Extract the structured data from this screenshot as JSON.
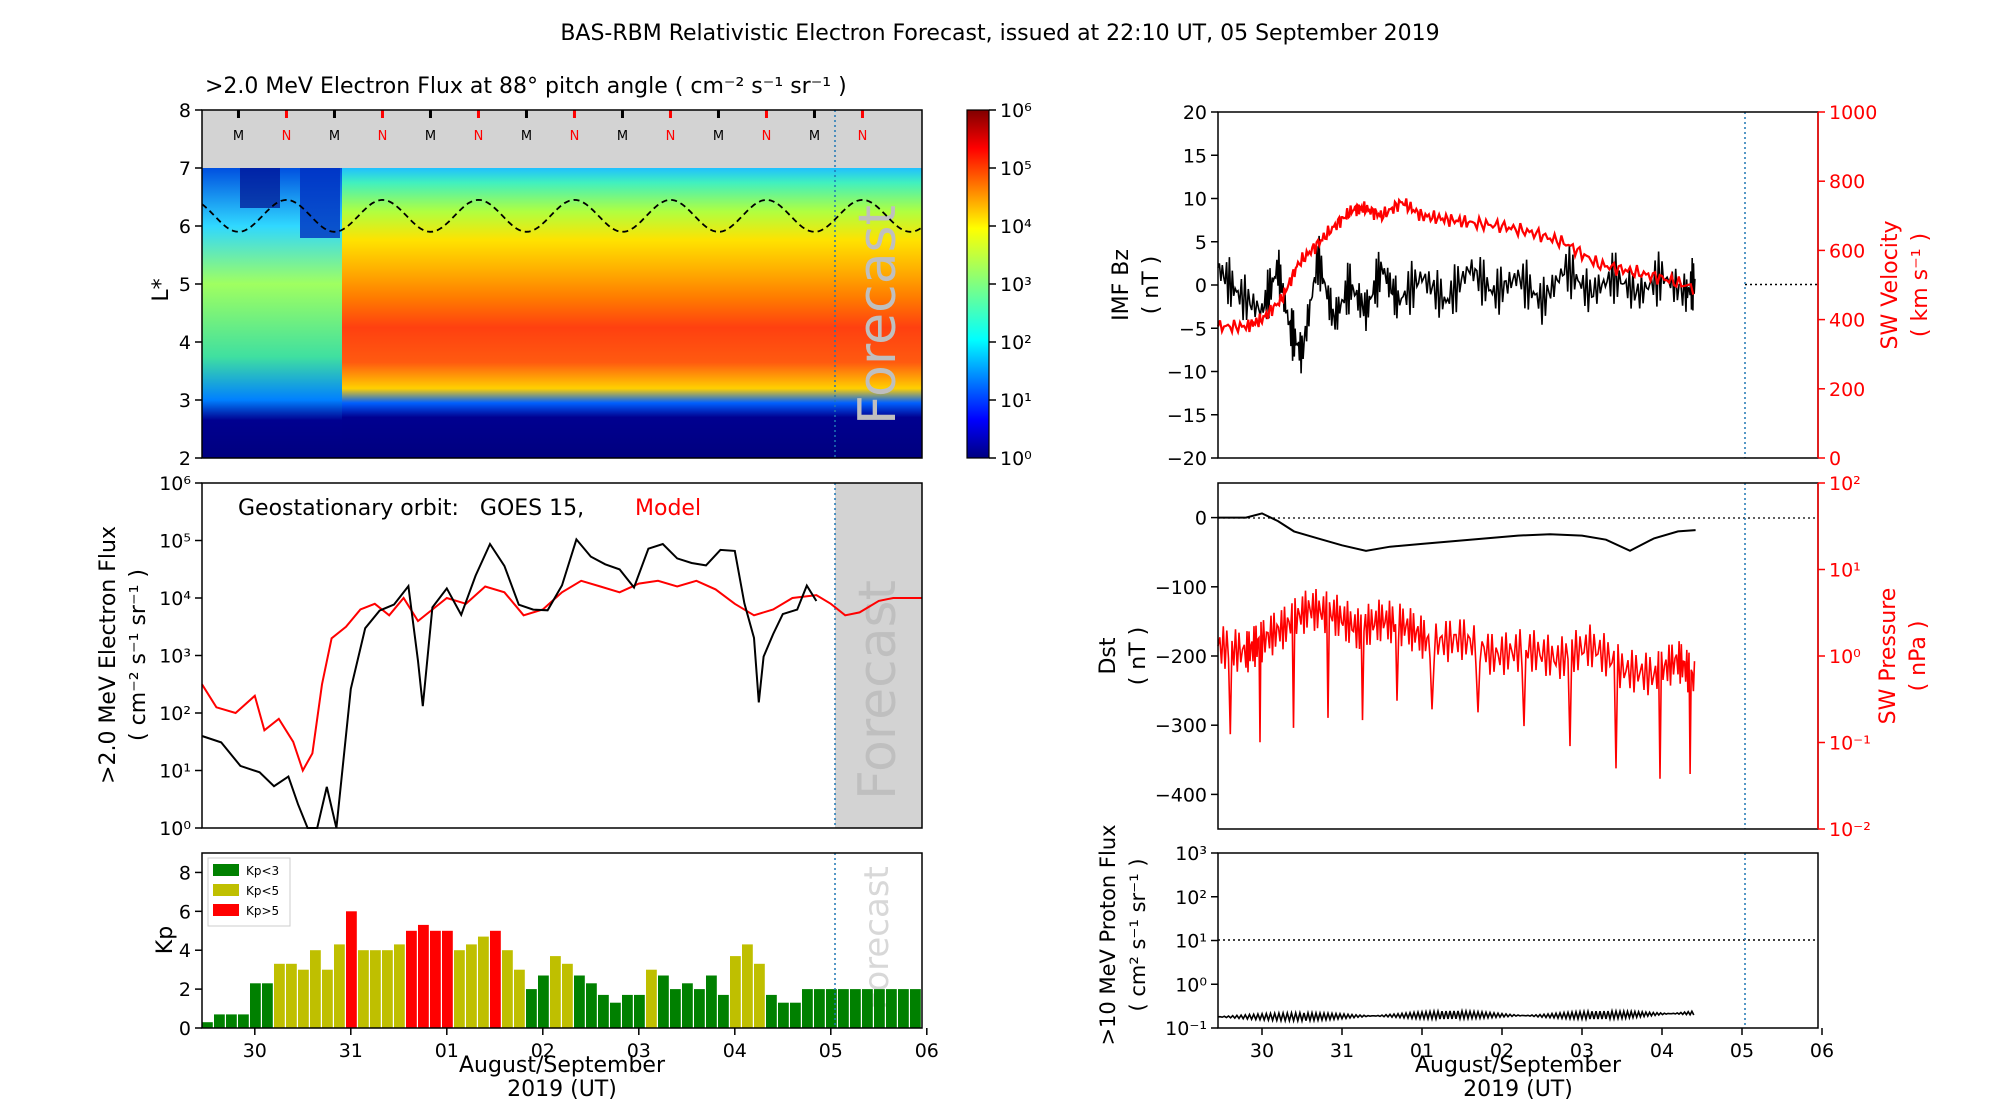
{
  "figure": {
    "title": "BAS-RBM Relativistic Electron Forecast, issued at 22:10 UT, 05 September 2019"
  },
  "colors": {
    "red": "#ff0000",
    "black": "#000000",
    "kp_low": "#008000",
    "kp_mid": "#bfbf00",
    "kp_high": "#ff0000",
    "forecast_shade": "#d3d3d3",
    "forecast_text": "#bfbfbf",
    "issue_line": "#1f77b4"
  },
  "x_axis": {
    "tick_labels": [
      "30",
      "31",
      "01",
      "02",
      "03",
      "04",
      "05",
      "06"
    ],
    "label_line1": "August/September",
    "label_line2": "2019 (UT)"
  },
  "chart_data": [
    {
      "id": "flux_map",
      "type": "heatmap",
      "title": ">2.0 MeV Electron Flux at 88° pitch angle ( cm⁻² s⁻¹ sr⁻¹ )",
      "ylabel": "L*",
      "ylim": [
        2,
        8
      ],
      "yticks": [
        "2",
        "3",
        "4",
        "5",
        "6",
        "7",
        "8"
      ],
      "colorbar_ticks": [
        "10⁰",
        "10¹",
        "10²",
        "10³",
        "10⁴",
        "10⁵",
        "10⁶"
      ],
      "colorbar_range_log10": [
        0,
        6
      ],
      "forecast_label": "Forecast",
      "orbit_markers": [
        "M",
        "N",
        "M",
        "N",
        "M",
        "N",
        "M",
        "N",
        "M",
        "N",
        "M",
        "N",
        "M",
        "N"
      ],
      "orbit_marker_days": [
        -0.17,
        0.33,
        0.83,
        1.33,
        1.83,
        2.33,
        2.83,
        3.33,
        3.83,
        4.33,
        4.83,
        5.33,
        5.83,
        6.33
      ],
      "dashed_line_range_L": [
        5.9,
        6.45
      ]
    },
    {
      "id": "geo_flux",
      "type": "line",
      "ylabel_line1": ">2.0 MeV Electron Flux",
      "ylabel_line2": "( cm⁻² s⁻¹ sr⁻¹ )",
      "legend_prefix": "Geostationary orbit:   GOES 15,",
      "legend_model": "Model",
      "forecast_label": "Forecast",
      "yscale": "log",
      "ylim": [
        1,
        1000000
      ],
      "yticks": [
        "10⁰",
        "10¹",
        "10²",
        "10³",
        "10⁴",
        "10⁵",
        "10⁶"
      ],
      "series": [
        {
          "name": "GOES 15",
          "color": "#000000",
          "points": [
            [
              -0.55,
              1.6
            ],
            [
              -0.35,
              1.4
            ],
            [
              -0.15,
              1.2
            ],
            [
              0.05,
              0.9
            ],
            [
              0.2,
              0.7
            ],
            [
              0.35,
              1.0
            ],
            [
              0.45,
              0.3
            ],
            [
              0.55,
              0.0
            ],
            [
              0.65,
              0.0
            ],
            [
              0.75,
              0.6
            ],
            [
              0.85,
              0.0
            ],
            [
              1.0,
              2.4
            ],
            [
              1.15,
              3.4
            ],
            [
              1.3,
              3.9
            ],
            [
              1.45,
              3.8
            ],
            [
              1.6,
              4.2
            ],
            [
              1.7,
              3.0
            ],
            [
              1.75,
              2.0
            ],
            [
              1.85,
              3.9
            ],
            [
              2.0,
              4.2
            ],
            [
              2.15,
              3.6
            ],
            [
              2.3,
              4.5
            ],
            [
              2.45,
              4.9
            ],
            [
              2.6,
              4.5
            ],
            [
              2.75,
              4.0
            ],
            [
              2.9,
              3.7
            ],
            [
              3.05,
              3.8
            ],
            [
              3.2,
              4.3
            ],
            [
              3.35,
              4.9
            ],
            [
              3.5,
              4.8
            ],
            [
              3.65,
              4.6
            ],
            [
              3.8,
              4.4
            ],
            [
              3.95,
              4.3
            ],
            [
              4.1,
              4.8
            ],
            [
              4.25,
              4.9
            ],
            [
              4.4,
              4.8
            ],
            [
              4.55,
              4.5
            ],
            [
              4.7,
              4.6
            ],
            [
              4.85,
              4.9
            ],
            [
              5.0,
              4.7
            ],
            [
              5.1,
              4.0
            ],
            [
              5.2,
              3.3
            ],
            [
              5.25,
              2.1
            ],
            [
              5.3,
              3.1
            ],
            [
              5.4,
              3.3
            ],
            [
              5.5,
              3.7
            ],
            [
              5.65,
              3.9
            ],
            [
              5.75,
              4.1
            ],
            [
              5.85,
              4.0
            ]
          ]
        },
        {
          "name": "Model",
          "color": "#ff0000",
          "points": [
            [
              -0.55,
              2.5
            ],
            [
              -0.4,
              2.1
            ],
            [
              -0.2,
              2.0
            ],
            [
              0.0,
              2.3
            ],
            [
              0.1,
              1.7
            ],
            [
              0.25,
              1.9
            ],
            [
              0.4,
              1.5
            ],
            [
              0.5,
              1.0
            ],
            [
              0.6,
              1.3
            ],
            [
              0.7,
              2.5
            ],
            [
              0.8,
              3.3
            ],
            [
              0.95,
              3.5
            ],
            [
              1.1,
              3.8
            ],
            [
              1.25,
              3.9
            ],
            [
              1.4,
              3.7
            ],
            [
              1.55,
              4.0
            ],
            [
              1.7,
              3.6
            ],
            [
              1.85,
              3.8
            ],
            [
              2.0,
              4.0
            ],
            [
              2.2,
              3.9
            ],
            [
              2.4,
              4.2
            ],
            [
              2.6,
              4.1
            ],
            [
              2.8,
              3.7
            ],
            [
              3.0,
              3.8
            ],
            [
              3.2,
              4.1
            ],
            [
              3.4,
              4.3
            ],
            [
              3.6,
              4.2
            ],
            [
              3.8,
              4.1
            ],
            [
              4.0,
              4.25
            ],
            [
              4.2,
              4.3
            ],
            [
              4.4,
              4.2
            ],
            [
              4.6,
              4.3
            ],
            [
              4.8,
              4.15
            ],
            [
              5.0,
              3.9
            ],
            [
              5.2,
              3.7
            ],
            [
              5.4,
              3.8
            ],
            [
              5.6,
              4.0
            ],
            [
              5.85,
              4.05
            ],
            [
              6.0,
              3.9
            ],
            [
              6.15,
              3.7
            ],
            [
              6.3,
              3.75
            ],
            [
              6.5,
              3.95
            ],
            [
              6.65,
              4.0
            ],
            [
              6.95,
              4.0
            ]
          ]
        }
      ]
    },
    {
      "id": "kp",
      "type": "bar",
      "ylabel": "Kp",
      "ylim": [
        0,
        9
      ],
      "yticks": [
        "0",
        "2",
        "4",
        "6",
        "8"
      ],
      "forecast_label": "Forecast",
      "legend": [
        {
          "label": "Kp<3",
          "color": "#008000"
        },
        {
          "label": "Kp<5",
          "color": "#bfbf00"
        },
        {
          "label": "Kp>5",
          "color": "#ff0000"
        }
      ],
      "bar_start_day": -0.55,
      "bar_width_days": 0.125,
      "values": [
        0.3,
        0.7,
        0.7,
        0.7,
        2.3,
        2.3,
        3.3,
        3.3,
        3.0,
        4.0,
        3.0,
        4.3,
        6.0,
        4.0,
        4.0,
        4.0,
        4.3,
        5.0,
        5.3,
        5.0,
        5.0,
        4.0,
        4.3,
        4.7,
        5.0,
        4.0,
        3.0,
        2.0,
        2.7,
        3.7,
        3.3,
        2.7,
        2.3,
        1.7,
        1.3,
        1.7,
        1.7,
        3.0,
        2.7,
        2.0,
        2.3,
        2.0,
        2.7,
        1.7,
        3.7,
        4.3,
        3.3,
        1.7,
        1.3,
        1.3,
        2.0,
        2.0,
        2.0,
        2.0,
        2.0,
        2.0,
        2.0,
        2.0,
        2.0,
        2.0,
        2.0
      ]
    },
    {
      "id": "imf_sw",
      "type": "line",
      "ylabel_left_line1": "IMF Bz",
      "ylabel_left_line2": "( nT )",
      "ylabel_right_line1": "SW Velocity",
      "ylabel_right_line2": "( km s⁻¹ )",
      "ylim_left": [
        -20,
        20
      ],
      "yticks_left": [
        "−20",
        "−15",
        "−10",
        "−5",
        "0",
        "5",
        "10",
        "15",
        "20"
      ],
      "ylim_right": [
        0,
        1000
      ],
      "yticks_right": [
        "0",
        "200",
        "400",
        "600",
        "800",
        "1000"
      ],
      "series": [
        {
          "name": "IMF Bz",
          "color": "#000000",
          "points": [
            [
              -0.55,
              2.0
            ],
            [
              -0.3,
              -1.0
            ],
            [
              0.0,
              -3.0
            ],
            [
              0.2,
              2.0
            ],
            [
              0.35,
              -5.0
            ],
            [
              0.5,
              -8.0
            ],
            [
              0.7,
              3.0
            ],
            [
              0.9,
              -4.0
            ],
            [
              1.1,
              0.0
            ],
            [
              1.3,
              -3.0
            ],
            [
              1.5,
              2.0
            ],
            [
              1.7,
              -2.0
            ],
            [
              2.0,
              1.0
            ],
            [
              2.3,
              -2.0
            ],
            [
              2.6,
              2.0
            ],
            [
              2.9,
              -1.0
            ],
            [
              3.2,
              1.0
            ],
            [
              3.5,
              -2.0
            ],
            [
              3.8,
              2.0
            ],
            [
              4.1,
              -1.0
            ],
            [
              4.4,
              1.0
            ],
            [
              4.7,
              -1.0
            ],
            [
              5.0,
              1.0
            ],
            [
              5.3,
              -1.0
            ],
            [
              5.42,
              0.5
            ]
          ]
        },
        {
          "name": "SW Velocity",
          "color": "#ff0000",
          "points": [
            [
              -0.55,
              380
            ],
            [
              -0.2,
              380
            ],
            [
              0.0,
              400
            ],
            [
              0.25,
              460
            ],
            [
              0.45,
              560
            ],
            [
              0.7,
              620
            ],
            [
              0.95,
              680
            ],
            [
              1.15,
              720
            ],
            [
              1.3,
              720
            ],
            [
              1.5,
              700
            ],
            [
              1.75,
              740
            ],
            [
              2.0,
              700
            ],
            [
              2.3,
              690
            ],
            [
              2.6,
              680
            ],
            [
              3.0,
              670
            ],
            [
              3.4,
              650
            ],
            [
              3.8,
              620
            ],
            [
              4.2,
              560
            ],
            [
              4.6,
              540
            ],
            [
              5.0,
              520
            ],
            [
              5.42,
              490
            ]
          ]
        }
      ]
    },
    {
      "id": "dst_pressure",
      "type": "line",
      "ylabel_left_line1": "Dst",
      "ylabel_left_line2": "( nT )",
      "ylabel_right_line1": "SW Pressure",
      "ylabel_right_line2": "( nPa )",
      "ylim_left": [
        -450,
        50
      ],
      "yticks_left": [
        "−400",
        "−300",
        "−200",
        "−100",
        "0"
      ],
      "ylim_right": [
        0.01,
        100
      ],
      "yticks_right": [
        "10⁻²",
        "10⁻¹",
        "10⁰",
        "10¹",
        "10²"
      ],
      "series": [
        {
          "name": "Dst",
          "color": "#000000",
          "points": [
            [
              -0.55,
              0
            ],
            [
              -0.2,
              0
            ],
            [
              0.0,
              6
            ],
            [
              0.2,
              -5
            ],
            [
              0.4,
              -20
            ],
            [
              0.7,
              -30
            ],
            [
              1.0,
              -40
            ],
            [
              1.3,
              -48
            ],
            [
              1.6,
              -42
            ],
            [
              2.0,
              -38
            ],
            [
              2.4,
              -34
            ],
            [
              2.8,
              -30
            ],
            [
              3.2,
              -26
            ],
            [
              3.6,
              -24
            ],
            [
              4.0,
              -26
            ],
            [
              4.3,
              -32
            ],
            [
              4.6,
              -48
            ],
            [
              4.9,
              -30
            ],
            [
              5.2,
              -20
            ],
            [
              5.42,
              -18
            ]
          ]
        },
        {
          "name": "SW Pressure",
          "color": "#ff0000",
          "points": [
            [
              -0.55,
              1.3
            ],
            [
              -0.2,
              1.1
            ],
            [
              0.0,
              1.5
            ],
            [
              0.3,
              2.2
            ],
            [
              0.6,
              3.5
            ],
            [
              0.9,
              3.0
            ],
            [
              1.2,
              2.0
            ],
            [
              1.5,
              2.6
            ],
            [
              1.8,
              2.2
            ],
            [
              2.1,
              1.4
            ],
            [
              2.5,
              1.6
            ],
            [
              2.9,
              1.0
            ],
            [
              3.3,
              1.2
            ],
            [
              3.7,
              0.9
            ],
            [
              4.1,
              1.3
            ],
            [
              4.5,
              0.7
            ],
            [
              4.9,
              0.6
            ],
            [
              5.2,
              0.9
            ],
            [
              5.42,
              0.5
            ]
          ]
        }
      ]
    },
    {
      "id": "proton_flux",
      "type": "line",
      "ylabel_line1": ">10 MeV Proton Flux",
      "ylabel_line2": "( cm² s⁻¹ sr⁻¹ )",
      "yscale": "log",
      "ylim": [
        0.1,
        1000
      ],
      "yticks": [
        "10⁻¹",
        "10⁰",
        "10¹",
        "10²",
        "10³"
      ],
      "threshold": 10,
      "series": [
        {
          "name": ">10 MeV Proton Flux",
          "color": "#000000",
          "points": [
            [
              -0.55,
              0.18
            ],
            [
              0.5,
              0.18
            ],
            [
              1.5,
              0.19
            ],
            [
              2.5,
              0.2
            ],
            [
              3.5,
              0.19
            ],
            [
              4.5,
              0.2
            ],
            [
              5.42,
              0.22
            ]
          ]
        }
      ]
    }
  ]
}
